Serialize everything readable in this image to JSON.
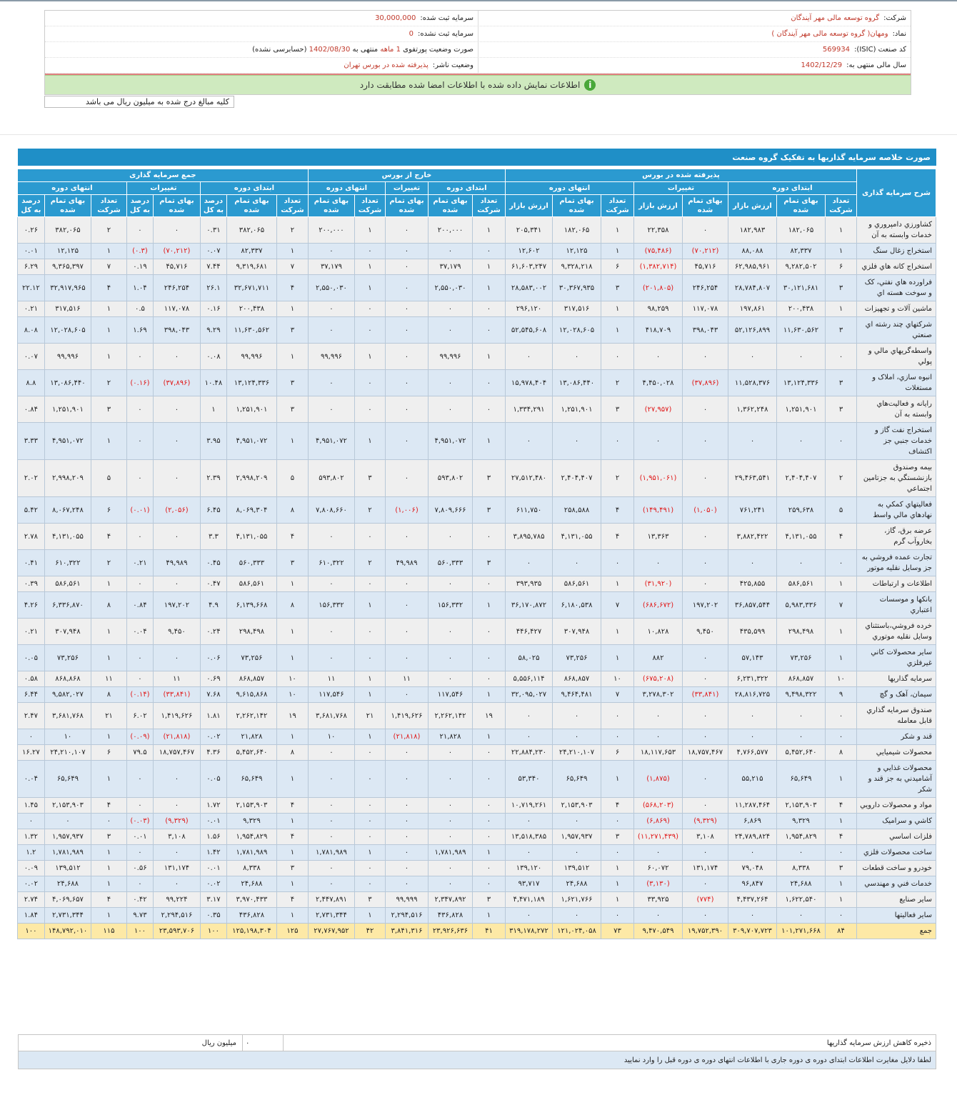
{
  "header": {
    "company_label": "شرکت:",
    "company": "گروه توسعه مالی مهر آیندگان",
    "symbol_label": "نماد:",
    "symbol": "ومهان( گروه توسعه مالی مهر آیندگان )",
    "isic_label": "کد صنعت (ISIC):",
    "isic": "569934",
    "fiscal_label": "سال مالی منتهی به:",
    "fiscal": "1402/12/29",
    "capital_label": "سرمایه ثبت شده:",
    "capital": "30,000,000",
    "unreg_label": "سرمایه ثبت نشده:",
    "unreg": "0",
    "report_label": "صورت وضعیت پورتفوی",
    "report_period": "1 ماهه",
    "report_end_label": "منتهی به",
    "report_date": "1402/08/30",
    "report_audit": "(حسابرسی نشده)",
    "status_label": "وضعیت ناشر:",
    "status": "پذیرفته شده در بورس تهران"
  },
  "notice": "اطلاعات نمایش داده شده با اطلاعات امضا شده مطابقت دارد",
  "units_note": "کلیه مبالغ درج شده به میلیون ریال می باشد",
  "table": {
    "title": "صورت خلاصه سرمایه گذاریها به تفکیک گروه صنعت",
    "name_header": "شرح سرمایه گذاری",
    "groups": [
      {
        "name": "پذیرفته شده در بورس",
        "periods": [
          {
            "name": "ابتدای دوره",
            "cols": [
              "تعداد شرکت",
              "بهای تمام شده",
              "ارزش بازار"
            ]
          },
          {
            "name": "تغییرات",
            "cols": [
              "بهای تمام شده",
              "ارزش بازار"
            ]
          },
          {
            "name": "انتهای دوره",
            "cols": [
              "تعداد شرکت",
              "بهای تمام شده",
              "ارزش بازار"
            ]
          }
        ]
      },
      {
        "name": "خارج از بورس",
        "periods": [
          {
            "name": "ابتدای دوره",
            "cols": [
              "تعداد شرکت",
              "بهای تمام شده"
            ]
          },
          {
            "name": "تغییرات",
            "cols": [
              "بهای تمام شده"
            ]
          },
          {
            "name": "انتهای دوره",
            "cols": [
              "تعداد شرکت",
              "بهای تمام شده"
            ]
          }
        ]
      },
      {
        "name": "جمع سرمایه گذاری",
        "periods": [
          {
            "name": "ابتدای دوره",
            "cols": [
              "تعداد شرکت",
              "بهای تمام شده",
              "درصد به کل"
            ]
          },
          {
            "name": "تغییرات",
            "cols": [
              "بهای تمام شده",
              "درصد به کل"
            ]
          },
          {
            "name": "انتهای دوره",
            "cols": [
              "تعداد شرکت",
              "بهای تمام شده",
              "درصد به کل"
            ]
          }
        ]
      }
    ],
    "rows": [
      [
        "کشاورزي دامپروري و خدمات وابسته به آن",
        "۱",
        "۱۸۲,۰۶۵",
        "۱۸۲,۹۸۳",
        "۰",
        "۲۲,۳۵۸",
        "۱",
        "۱۸۲,۰۶۵",
        "۲۰۵,۳۴۱",
        "۱",
        "۲۰۰,۰۰۰",
        "۰",
        "۱",
        "۲۰۰,۰۰۰",
        "۲",
        "۳۸۲,۰۶۵",
        "۰.۳۱",
        "۰",
        "۰",
        "۲",
        "۳۸۲,۰۶۵",
        "۰.۲۶"
      ],
      [
        "استخراج زغال سنگ",
        "۱",
        "۸۲,۳۳۷",
        "۸۸,۰۸۸",
        "(۷۰,۲۱۲)",
        "(۷۵,۴۸۶)",
        "۱",
        "۱۲,۱۲۵",
        "۱۲,۶۰۲",
        "۰",
        "۰",
        "۰",
        "۰",
        "۰",
        "۱",
        "۸۲,۳۳۷",
        "۰.۰۷",
        "(۷۰,۲۱۲)",
        "(۰.۳)",
        "۱",
        "۱۲,۱۲۵",
        "۰.۰۱"
      ],
      [
        "استخراج کانه هاي فلزي",
        "۶",
        "۹,۲۸۲,۵۰۲",
        "۶۲,۹۸۵,۹۶۱",
        "۴۵,۷۱۶",
        "(۱,۳۸۲,۷۱۴)",
        "۶",
        "۹,۳۲۸,۲۱۸",
        "۶۱,۶۰۳,۲۴۷",
        "۱",
        "۳۷,۱۷۹",
        "۰",
        "۱",
        "۳۷,۱۷۹",
        "۷",
        "۹,۳۱۹,۶۸۱",
        "۷.۴۴",
        "۴۵,۷۱۶",
        "۰.۱۹",
        "۷",
        "۹,۳۶۵,۳۹۷",
        "۶.۲۹"
      ],
      [
        "فراورده هاي نفتي، کک و سوخت هسته اي",
        "۳",
        "۳۰,۱۲۱,۶۸۱",
        "۲۸,۷۸۴,۸۰۷",
        "۲۴۶,۲۵۴",
        "(۲۰۱,۸۰۵)",
        "۳",
        "۳۰,۳۶۷,۹۳۵",
        "۲۸,۵۸۳,۰۰۲",
        "۱",
        "۲,۵۵۰,۰۳۰",
        "۰",
        "۱",
        "۲,۵۵۰,۰۳۰",
        "۴",
        "۳۲,۶۷۱,۷۱۱",
        "۲۶.۱",
        "۲۴۶,۲۵۴",
        "۱.۰۴",
        "۴",
        "۳۲,۹۱۷,۹۶۵",
        "۲۲.۱۲"
      ],
      [
        "ماشين آلات و تجهيزات",
        "۱",
        "۲۰۰,۴۳۸",
        "۱۹۷,۸۶۱",
        "۱۱۷,۰۷۸",
        "۹۸,۲۵۹",
        "۱",
        "۳۱۷,۵۱۶",
        "۲۹۶,۱۲۰",
        "۰",
        "۰",
        "۰",
        "۰",
        "۰",
        "۱",
        "۲۰۰,۴۳۸",
        "۰.۱۶",
        "۱۱۷,۰۷۸",
        "۰.۵",
        "۱",
        "۳۱۷,۵۱۶",
        "۰.۲۱"
      ],
      [
        "شرکتهاي چند رشته اي صنعتي",
        "۳",
        "۱۱,۶۳۰,۵۶۲",
        "۵۲,۱۲۶,۸۹۹",
        "۳۹۸,۰۴۳",
        "۴۱۸,۷۰۹",
        "۱",
        "۱۲,۰۲۸,۶۰۵",
        "۵۲,۵۴۵,۶۰۸",
        "۰",
        "۰",
        "۰",
        "۰",
        "۰",
        "۳",
        "۱۱,۶۳۰,۵۶۲",
        "۹.۲۹",
        "۳۹۸,۰۴۳",
        "۱.۶۹",
        "۱",
        "۱۲,۰۲۸,۶۰۵",
        "۸.۰۸"
      ],
      [
        "واسطه‌گريهاي مالي و پولي",
        "۰",
        "۰",
        "۰",
        "۰",
        "۰",
        "۰",
        "۰",
        "۰",
        "۱",
        "۹۹,۹۹۶",
        "۰",
        "۱",
        "۹۹,۹۹۶",
        "۱",
        "۹۹,۹۹۶",
        "۰.۰۸",
        "۰",
        "۰",
        "۱",
        "۹۹,۹۹۶",
        "۰.۰۷"
      ],
      [
        "انبوه سازي، املاک و مستغلات",
        "۳",
        "۱۳,۱۲۴,۳۳۶",
        "۱۱,۵۲۸,۳۷۶",
        "(۳۷,۸۹۶)",
        "۴,۴۵۰,۰۲۸",
        "۲",
        "۱۳,۰۸۶,۴۴۰",
        "۱۵,۹۷۸,۴۰۴",
        "۰",
        "۰",
        "۰",
        "۰",
        "۰",
        "۳",
        "۱۳,۱۲۴,۳۳۶",
        "۱۰.۴۸",
        "(۳۷,۸۹۶)",
        "(۰.۱۶)",
        "۲",
        "۱۳,۰۸۶,۴۴۰",
        "۸.۸"
      ],
      [
        "رايانه و فعاليت‌هاي وابسته به آن",
        "۳",
        "۱,۲۵۱,۹۰۱",
        "۱,۳۶۲,۲۴۸",
        "۰",
        "(۲۷,۹۵۷)",
        "۳",
        "۱,۲۵۱,۹۰۱",
        "۱,۳۳۴,۲۹۱",
        "۰",
        "۰",
        "۰",
        "۰",
        "۰",
        "۳",
        "۱,۲۵۱,۹۰۱",
        "۱",
        "۰",
        "۰",
        "۳",
        "۱,۲۵۱,۹۰۱",
        "۰.۸۴"
      ],
      [
        "استخراج نفت گاز و خدمات جنبي جز اکتشاف",
        "۰",
        "۰",
        "۰",
        "۰",
        "۰",
        "۰",
        "۰",
        "۰",
        "۱",
        "۴,۹۵۱,۰۷۲",
        "۰",
        "۱",
        "۴,۹۵۱,۰۷۲",
        "۱",
        "۴,۹۵۱,۰۷۲",
        "۳.۹۵",
        "۰",
        "۰",
        "۱",
        "۴,۹۵۱,۰۷۲",
        "۳.۳۳"
      ],
      [
        "بيمه وصندوق بازنشستگي به جزتامين اجتماعي",
        "۲",
        "۲,۴۰۴,۴۰۷",
        "۲۹,۴۶۳,۵۴۱",
        "۰",
        "(۱,۹۵۱,۰۶۱)",
        "۲",
        "۲,۴۰۴,۴۰۷",
        "۲۷,۵۱۲,۴۸۰",
        "۳",
        "۵۹۳,۸۰۲",
        "۰",
        "۳",
        "۵۹۳,۸۰۲",
        "۵",
        "۲,۹۹۸,۲۰۹",
        "۲.۳۹",
        "۰",
        "۰",
        "۵",
        "۲,۹۹۸,۲۰۹",
        "۲.۰۲"
      ],
      [
        "فعاليتهاي کمکي به نهادهاي مالي واسط",
        "۵",
        "۲۵۹,۶۳۸",
        "۷۶۱,۲۴۱",
        "(۱,۰۵۰)",
        "(۱۴۹,۴۹۱)",
        "۴",
        "۲۵۸,۵۸۸",
        "۶۱۱,۷۵۰",
        "۳",
        "۷,۸۰۹,۶۶۶",
        "(۱,۰۰۶)",
        "۲",
        "۷,۸۰۸,۶۶۰",
        "۸",
        "۸,۰۶۹,۳۰۴",
        "۶.۴۵",
        "(۲,۰۵۶)",
        "(۰.۰۱)",
        "۶",
        "۸,۰۶۷,۲۴۸",
        "۵.۴۲"
      ],
      [
        "عرضه برق، گاز، بخاروآب گرم",
        "۴",
        "۴,۱۳۱,۰۵۵",
        "۳,۸۸۲,۴۲۲",
        "۰",
        "۱۳,۳۶۳",
        "۴",
        "۴,۱۳۱,۰۵۵",
        "۳,۸۹۵,۷۸۵",
        "۰",
        "۰",
        "۰",
        "۰",
        "۰",
        "۴",
        "۴,۱۳۱,۰۵۵",
        "۳.۳",
        "۰",
        "۰",
        "۴",
        "۴,۱۳۱,۰۵۵",
        "۲.۷۸"
      ],
      [
        "تجارت عمده فروشي به جز وسايل نقليه موتور",
        "۰",
        "۰",
        "۰",
        "۰",
        "۰",
        "۰",
        "۰",
        "۰",
        "۳",
        "۵۶۰,۳۳۳",
        "۴۹,۹۸۹",
        "۲",
        "۶۱۰,۳۲۲",
        "۳",
        "۵۶۰,۳۳۳",
        "۰.۴۵",
        "۴۹,۹۸۹",
        "۰.۲۱",
        "۲",
        "۶۱۰,۳۲۲",
        "۰.۴۱"
      ],
      [
        "اطلاعات و ارتباطات",
        "۱",
        "۵۸۶,۵۶۱",
        "۴۲۵,۸۵۵",
        "۰",
        "(۳۱,۹۲۰)",
        "۱",
        "۵۸۶,۵۶۱",
        "۳۹۳,۹۳۵",
        "۰",
        "۰",
        "۰",
        "۰",
        "۰",
        "۱",
        "۵۸۶,۵۶۱",
        "۰.۴۷",
        "۰",
        "۰",
        "۱",
        "۵۸۶,۵۶۱",
        "۰.۳۹"
      ],
      [
        "بانکها و موسسات اعتباري",
        "۷",
        "۵,۹۸۳,۳۳۶",
        "۳۶,۸۵۷,۵۴۴",
        "۱۹۷,۲۰۲",
        "(۶۸۶,۶۷۲)",
        "۷",
        "۶,۱۸۰,۵۳۸",
        "۳۶,۱۷۰,۸۷۲",
        "۱",
        "۱۵۶,۳۳۲",
        "۰",
        "۱",
        "۱۵۶,۳۳۲",
        "۸",
        "۶,۱۳۹,۶۶۸",
        "۴.۹",
        "۱۹۷,۲۰۲",
        "۰.۸۴",
        "۸",
        "۶,۳۳۶,۸۷۰",
        "۴.۲۶"
      ],
      [
        "خرده فروشي،باستثناي وسايل نقليه موتوري",
        "۱",
        "۲۹۸,۴۹۸",
        "۴۳۵,۵۹۹",
        "۹,۴۵۰",
        "۱۰,۸۲۸",
        "۱",
        "۳۰۷,۹۴۸",
        "۴۴۶,۴۲۷",
        "۰",
        "۰",
        "۰",
        "۰",
        "۰",
        "۱",
        "۲۹۸,۴۹۸",
        "۰.۲۴",
        "۹,۴۵۰",
        "۰.۰۴",
        "۱",
        "۳۰۷,۹۴۸",
        "۰.۲۱"
      ],
      [
        "ساير محصولات کاني غيرفلزي",
        "۱",
        "۷۳,۲۵۶",
        "۵۷,۱۴۳",
        "۰",
        "۸۸۲",
        "۱",
        "۷۳,۲۵۶",
        "۵۸,۰۲۵",
        "۰",
        "۰",
        "۰",
        "۰",
        "۰",
        "۱",
        "۷۳,۲۵۶",
        "۰.۰۶",
        "۰",
        "۰",
        "۱",
        "۷۳,۲۵۶",
        "۰.۰۵"
      ],
      [
        "سرمايه گذاريها",
        "۱۰",
        "۸۶۸,۸۵۷",
        "۶,۲۳۱,۳۲۲",
        "۰",
        "(۶۷۵,۲۰۸)",
        "۱۰",
        "۸۶۸,۸۵۷",
        "۵,۵۵۶,۱۱۴",
        "۰",
        "۰",
        "۱۱",
        "۱",
        "۱۱",
        "۱۰",
        "۸۶۸,۸۵۷",
        "۰.۶۹",
        "۱۱",
        "۰",
        "۱۱",
        "۸۶۸,۸۶۸",
        "۰.۵۸"
      ],
      [
        "سيمان، آهک و گچ",
        "۹",
        "۹,۴۹۸,۳۲۲",
        "۲۸,۸۱۶,۷۲۵",
        "(۳۳,۸۴۱)",
        "۳,۲۷۸,۳۰۲",
        "۷",
        "۹,۴۶۴,۴۸۱",
        "۳۲,۰۹۵,۰۲۷",
        "۱",
        "۱۱۷,۵۴۶",
        "۰",
        "۱",
        "۱۱۷,۵۴۶",
        "۱۰",
        "۹,۶۱۵,۸۶۸",
        "۷.۶۸",
        "(۳۳,۸۴۱)",
        "(۰.۱۴)",
        "۸",
        "۹,۵۸۲,۰۲۷",
        "۶.۴۴"
      ],
      [
        "صندوق سرمايه گذاري قابل معامله",
        "۰",
        "۰",
        "۰",
        "۰",
        "۰",
        "۰",
        "۰",
        "۰",
        "۱۹",
        "۲,۲۶۲,۱۴۲",
        "۱,۴۱۹,۶۲۶",
        "۲۱",
        "۳,۶۸۱,۷۶۸",
        "۱۹",
        "۲,۲۶۲,۱۴۲",
        "۱.۸۱",
        "۱,۴۱۹,۶۲۶",
        "۶.۰۲",
        "۲۱",
        "۳,۶۸۱,۷۶۸",
        "۲.۴۷"
      ],
      [
        "قند و شکر",
        "۰",
        "۰",
        "۰",
        "۰",
        "۰",
        "۰",
        "۰",
        "۰",
        "۱",
        "۲۱,۸۲۸",
        "(۲۱,۸۱۸)",
        "۱",
        "۱۰",
        "۱",
        "۲۱,۸۲۸",
        "۰.۰۲",
        "(۲۱,۸۱۸)",
        "(۰.۰۹)",
        "۱",
        "۱۰",
        "۰"
      ],
      [
        "محصولات شيميايي",
        "۸",
        "۵,۴۵۲,۶۴۰",
        "۴,۷۶۶,۵۷۷",
        "۱۸,۷۵۷,۴۶۷",
        "۱۸,۱۱۷,۶۵۳",
        "۶",
        "۲۴,۲۱۰,۱۰۷",
        "۲۲,۸۸۴,۲۳۰",
        "۰",
        "۰",
        "۰",
        "۰",
        "۰",
        "۸",
        "۵,۴۵۲,۶۴۰",
        "۴.۳۶",
        "۱۸,۷۵۷,۴۶۷",
        "۷۹.۵",
        "۶",
        "۲۴,۲۱۰,۱۰۷",
        "۱۶.۲۷"
      ],
      [
        "محصولات غذايي و آشاميدني به جز قند و شکر",
        "۱",
        "۶۵,۶۴۹",
        "۵۵,۲۱۵",
        "۰",
        "(۱,۸۷۵)",
        "۱",
        "۶۵,۶۴۹",
        "۵۳,۳۴۰",
        "۰",
        "۰",
        "۰",
        "۰",
        "۰",
        "۱",
        "۶۵,۶۴۹",
        "۰.۰۵",
        "۰",
        "۰",
        "۱",
        "۶۵,۶۴۹",
        "۰.۰۴"
      ],
      [
        "مواد و محصولات دارويي",
        "۴",
        "۲,۱۵۳,۹۰۳",
        "۱۱,۲۸۷,۴۶۴",
        "۰",
        "(۵۶۸,۲۰۳)",
        "۴",
        "۲,۱۵۳,۹۰۳",
        "۱۰,۷۱۹,۲۶۱",
        "۰",
        "۰",
        "۰",
        "۰",
        "۰",
        "۴",
        "۲,۱۵۳,۹۰۳",
        "۱.۷۲",
        "۰",
        "۰",
        "۴",
        "۲,۱۵۳,۹۰۳",
        "۱.۴۵"
      ],
      [
        "کاشي و سراميک",
        "۱",
        "۹,۳۲۹",
        "۶,۸۶۹",
        "(۹,۳۲۹)",
        "(۶,۸۶۹)",
        "۰",
        "۰",
        "۰",
        "۰",
        "۰",
        "۰",
        "۰",
        "۰",
        "۱",
        "۹,۳۲۹",
        "۰.۰۱",
        "(۹,۳۲۹)",
        "(۰.۰۳)",
        "۰",
        "۰",
        "۰"
      ],
      [
        "فلزات اساسي",
        "۴",
        "۱,۹۵۴,۸۲۹",
        "۲۴,۷۸۹,۸۲۴",
        "۳,۱۰۸",
        "(۱۱,۲۷۱,۴۳۹)",
        "۳",
        "۱,۹۵۷,۹۳۷",
        "۱۳,۵۱۸,۳۸۵",
        "۰",
        "۰",
        "۰",
        "۰",
        "۰",
        "۴",
        "۱,۹۵۴,۸۲۹",
        "۱.۵۶",
        "۳,۱۰۸",
        "۰.۰۱",
        "۳",
        "۱,۹۵۷,۹۳۷",
        "۱.۳۲"
      ],
      [
        "ساخت محصولات فلزي",
        "۰",
        "۰",
        "۰",
        "۰",
        "۰",
        "۰",
        "۰",
        "۰",
        "۱",
        "۱,۷۸۱,۹۸۹",
        "۰",
        "۱",
        "۱,۷۸۱,۹۸۹",
        "۱",
        "۱,۷۸۱,۹۸۹",
        "۱.۴۲",
        "۰",
        "۰",
        "۱",
        "۱,۷۸۱,۹۸۹",
        "۱.۲"
      ],
      [
        "خودرو و ساخت قطعات",
        "۳",
        "۸,۳۳۸",
        "۷۹,۰۴۸",
        "۱۳۱,۱۷۴",
        "۶۰,۰۷۲",
        "۱",
        "۱۳۹,۵۱۲",
        "۱۳۹,۱۲۰",
        "۰",
        "۰",
        "۰",
        "۰",
        "۰",
        "۳",
        "۸,۳۳۸",
        "۰.۰۱",
        "۱۳۱,۱۷۴",
        "۰.۵۶",
        "۱",
        "۱۳۹,۵۱۲",
        "۰.۰۹"
      ],
      [
        "خدمات فني و مهندسي",
        "۱",
        "۲۴,۶۸۸",
        "۹۶,۸۴۷",
        "۰",
        "(۳,۱۳۰)",
        "۱",
        "۲۴,۶۸۸",
        "۹۳,۷۱۷",
        "۰",
        "۰",
        "۰",
        "۰",
        "۰",
        "۱",
        "۲۴,۶۸۸",
        "۰.۰۲",
        "۰",
        "۰",
        "۱",
        "۲۴,۶۸۸",
        "۰.۰۲"
      ],
      [
        "ساير صنايع",
        "۱",
        "۱,۶۲۲,۵۴۰",
        "۴,۴۳۷,۲۶۴",
        "(۷۷۴)",
        "۳۳,۹۲۵",
        "۱",
        "۱,۶۲۱,۷۶۶",
        "۴,۴۷۱,۱۸۹",
        "۳",
        "۲,۳۴۷,۸۹۲",
        "۹۹,۹۹۹",
        "۳",
        "۲,۴۴۷,۸۹۱",
        "۴",
        "۳,۹۷۰,۴۳۳",
        "۳.۱۷",
        "۹۹,۲۲۴",
        "۰.۴۲",
        "۴",
        "۴,۰۶۹,۶۵۷",
        "۲.۷۴"
      ],
      [
        "ساير فعاليتها",
        "۰",
        "۰",
        "۰",
        "۰",
        "۰",
        "۰",
        "۰",
        "۰",
        "۱",
        "۴۳۶,۸۲۸",
        "۲,۲۹۴,۵۱۶",
        "۱",
        "۲,۷۳۱,۳۴۴",
        "۱",
        "۴۳۶,۸۲۸",
        "۰.۳۵",
        "۲,۲۹۴,۵۱۶",
        "۹.۷۳",
        "۱",
        "۲,۷۳۱,۳۴۴",
        "۱.۸۴"
      ]
    ],
    "total": [
      "جمع",
      "۸۴",
      "۱۰۱,۲۷۱,۶۶۸",
      "۳۰۹,۷۰۷,۷۲۳",
      "۱۹,۷۵۲,۳۹۰",
      "۹,۴۷۰,۵۴۹",
      "۷۳",
      "۱۲۱,۰۲۴,۰۵۸",
      "۳۱۹,۱۷۸,۲۷۲",
      "۴۱",
      "۲۳,۹۲۶,۶۳۶",
      "۳,۸۴۱,۳۱۶",
      "۴۲",
      "۲۷,۷۶۷,۹۵۲",
      "۱۲۵",
      "۱۲۵,۱۹۸,۳۰۴",
      "۱۰۰",
      "۲۳,۵۹۳,۷۰۶",
      "۱۰۰",
      "۱۱۵",
      "۱۴۸,۷۹۲,۰۱۰",
      "۱۰۰"
    ]
  },
  "footer": {
    "reserve_label": "ذخیره کاهش ارزش سرمایه گذاریها",
    "reserve_value": "۰",
    "reserve_unit": "میلیون ریال",
    "discrepancy_prompt": "لطفا دلایل مغایرت اطلاعات ابتدای دوره ی دوره جاری با اطلاعات انتهای دوره ی دوره قبل را وارد نمایید"
  }
}
